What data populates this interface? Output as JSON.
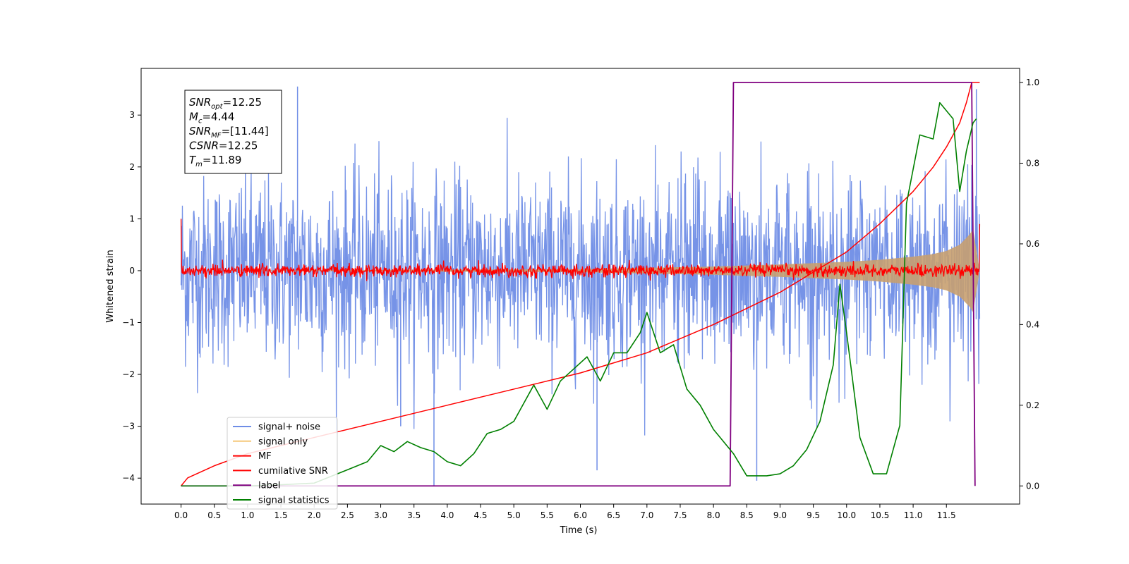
{
  "chart_data": {
    "type": "line",
    "xlabel": "Time (s)",
    "ylabel": "Whitened strain",
    "xlim": [
      -0.6,
      12.6
    ],
    "ylim": [
      -4.5,
      3.9
    ],
    "y2lim": [
      -0.045,
      1.035
    ],
    "xticks": [
      "0.0",
      "0.5",
      "1.0",
      "1.5",
      "2.0",
      "2.5",
      "3.0",
      "3.5",
      "4.0",
      "4.5",
      "5.0",
      "5.5",
      "6.0",
      "6.5",
      "7.0",
      "7.5",
      "8.0",
      "8.5",
      "9.0",
      "9.5",
      "10.0",
      "10.5",
      "11.0",
      "11.5"
    ],
    "yticks": [
      "−4",
      "−3",
      "−2",
      "−1",
      "0",
      "1",
      "2",
      "3"
    ],
    "y2ticks": [
      "0.0",
      "0.2",
      "0.4",
      "0.6",
      "0.8",
      "1.0"
    ],
    "annotation": {
      "lines": [
        {
          "sym": "SNR",
          "sub": "opt",
          "val": "=12.25"
        },
        {
          "sym": "M",
          "sub": "c",
          "val": "=4.44"
        },
        {
          "sym": "SNR",
          "sub": "MF",
          "val": "=[11.44]"
        },
        {
          "sym": "CSNR",
          "sub": "",
          "val": "=12.25"
        },
        {
          "sym": "T",
          "sub": "m",
          "val": "=11.89"
        }
      ]
    },
    "legend": {
      "position": "lower-left",
      "entries": [
        {
          "label": "signal+ noise",
          "color": "#6f8de6"
        },
        {
          "label": "signal only",
          "color": "#f5c87a"
        },
        {
          "label": "MF",
          "color": "#ff0000"
        },
        {
          "label": "cumilative SNR",
          "color": "#ff0000"
        },
        {
          "label": "label",
          "color": "#800080"
        },
        {
          "label": "signal statistics",
          "color": "#008000"
        }
      ]
    },
    "series": [
      {
        "name": "signal+ noise",
        "axis": "left",
        "color": "#6f8de6",
        "noise_std": 0.9,
        "x_range": [
          0.0,
          12.0
        ],
        "extremes": [
          [
            1.75,
            3.55
          ],
          [
            3.8,
            -4.15
          ],
          [
            8.65,
            -4.05
          ],
          [
            11.95,
            3.5
          ],
          [
            6.25,
            -3.85
          ],
          [
            3.3,
            -3.0
          ]
        ]
      },
      {
        "name": "signal only",
        "axis": "left",
        "color": "#c8a070",
        "envelope_x": [
          0.0,
          6.0,
          8.0,
          9.0,
          10.0,
          10.5,
          11.0,
          11.3,
          11.5,
          11.7,
          11.85,
          11.9,
          12.0
        ],
        "envelope_y": [
          0.0,
          0.03,
          0.08,
          0.12,
          0.17,
          0.21,
          0.27,
          0.32,
          0.38,
          0.5,
          0.7,
          0.8,
          0.0
        ]
      },
      {
        "name": "MF",
        "axis": "left",
        "color": "#ff0000",
        "noise_std": 0.06,
        "x_range": [
          0.0,
          12.0
        ],
        "start_value": 1.0,
        "end_value": 0.9
      },
      {
        "name": "cumilative SNR",
        "axis": "right",
        "color": "#ff0000",
        "x": [
          0.0,
          0.1,
          0.5,
          1.0,
          2.0,
          3.0,
          4.0,
          5.0,
          6.0,
          7.0,
          8.0,
          8.5,
          9.0,
          9.5,
          10.0,
          10.5,
          11.0,
          11.3,
          11.5,
          11.7,
          11.8,
          11.88,
          11.9,
          12.0
        ],
        "y": [
          0.0,
          0.02,
          0.05,
          0.08,
          0.12,
          0.16,
          0.2,
          0.24,
          0.28,
          0.33,
          0.4,
          0.44,
          0.48,
          0.53,
          0.58,
          0.65,
          0.73,
          0.79,
          0.84,
          0.9,
          0.95,
          1.0,
          1.0,
          1.0
        ]
      },
      {
        "name": "label",
        "axis": "right",
        "color": "#800080",
        "x": [
          0.0,
          8.25,
          8.3,
          11.88,
          11.93
        ],
        "y": [
          0.0,
          0.0,
          1.0,
          1.0,
          0.0
        ]
      },
      {
        "name": "signal statistics",
        "axis": "right",
        "color": "#008000",
        "x": [
          0.0,
          1.0,
          1.5,
          2.0,
          2.5,
          2.8,
          3.0,
          3.2,
          3.4,
          3.6,
          3.8,
          4.0,
          4.2,
          4.4,
          4.6,
          4.8,
          5.0,
          5.1,
          5.3,
          5.5,
          5.7,
          5.9,
          6.1,
          6.3,
          6.5,
          6.7,
          6.9,
          7.0,
          7.2,
          7.4,
          7.6,
          7.8,
          8.0,
          8.3,
          8.5,
          8.8,
          9.0,
          9.2,
          9.4,
          9.6,
          9.8,
          9.9,
          10.0,
          10.2,
          10.4,
          10.6,
          10.8,
          10.9,
          11.1,
          11.3,
          11.4,
          11.6,
          11.7,
          11.8,
          11.9,
          11.95
        ],
        "y": [
          0.0,
          0.0,
          0.003,
          0.007,
          0.04,
          0.06,
          0.1,
          0.085,
          0.11,
          0.095,
          0.085,
          0.06,
          0.05,
          0.08,
          0.13,
          0.14,
          0.16,
          0.19,
          0.25,
          0.19,
          0.26,
          0.29,
          0.32,
          0.26,
          0.33,
          0.33,
          0.38,
          0.43,
          0.33,
          0.35,
          0.24,
          0.2,
          0.14,
          0.08,
          0.025,
          0.025,
          0.03,
          0.05,
          0.09,
          0.16,
          0.3,
          0.5,
          0.38,
          0.12,
          0.03,
          0.03,
          0.15,
          0.7,
          0.87,
          0.86,
          0.95,
          0.91,
          0.73,
          0.83,
          0.9,
          0.91
        ]
      }
    ]
  }
}
